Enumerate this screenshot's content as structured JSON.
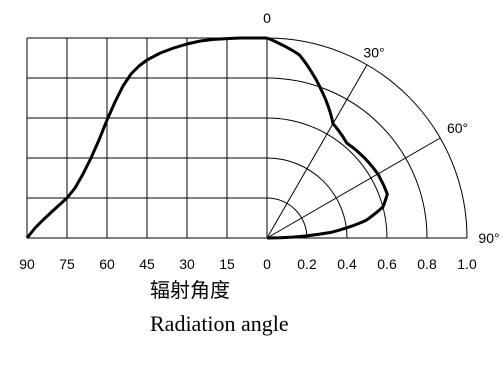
{
  "chart_data": {
    "type": "line",
    "title": "",
    "left_panel": {
      "x_ticks": [
        "90",
        "75",
        "60",
        "45",
        "30",
        "15",
        "0"
      ],
      "x_values": [
        90,
        75,
        60,
        45,
        30,
        15,
        0
      ],
      "xlim": [
        90,
        0
      ],
      "ylim": [
        0,
        1.0
      ],
      "grid": true,
      "series": [
        {
          "x": [
            90,
            87,
            84,
            80,
            75,
            72,
            69,
            66,
            63,
            60,
            57,
            54,
            51,
            48,
            45,
            40,
            35,
            30,
            25,
            20,
            15,
            10,
            5,
            0
          ],
          "y": [
            0.0,
            0.05,
            0.09,
            0.14,
            0.2,
            0.25,
            0.32,
            0.4,
            0.49,
            0.59,
            0.68,
            0.76,
            0.82,
            0.86,
            0.89,
            0.925,
            0.95,
            0.97,
            0.985,
            0.993,
            0.997,
            1.0,
            1.0,
            1.0
          ]
        }
      ]
    },
    "right_panel": {
      "type": "polar",
      "radial_ticks": [
        "0",
        "0.2",
        "0.4",
        "0.6",
        "0.8",
        "1.0"
      ],
      "radial_values": [
        0,
        0.2,
        0.4,
        0.6,
        0.8,
        1.0
      ],
      "angle_labels": [
        "0",
        "30°",
        "60°",
        "90°"
      ],
      "angle_values": [
        0,
        30,
        60,
        90
      ],
      "series": [
        {
          "angle": [
            0,
            10,
            20,
            30,
            40,
            50,
            60,
            70,
            75,
            80,
            85,
            90
          ],
          "r": [
            1.0,
            0.93,
            0.79,
            0.66,
            0.62,
            0.63,
            0.64,
            0.64,
            0.6,
            0.5,
            0.32,
            0.0
          ]
        }
      ]
    },
    "caption_cn": "辐射角度",
    "caption_en": "Radiation angle"
  }
}
